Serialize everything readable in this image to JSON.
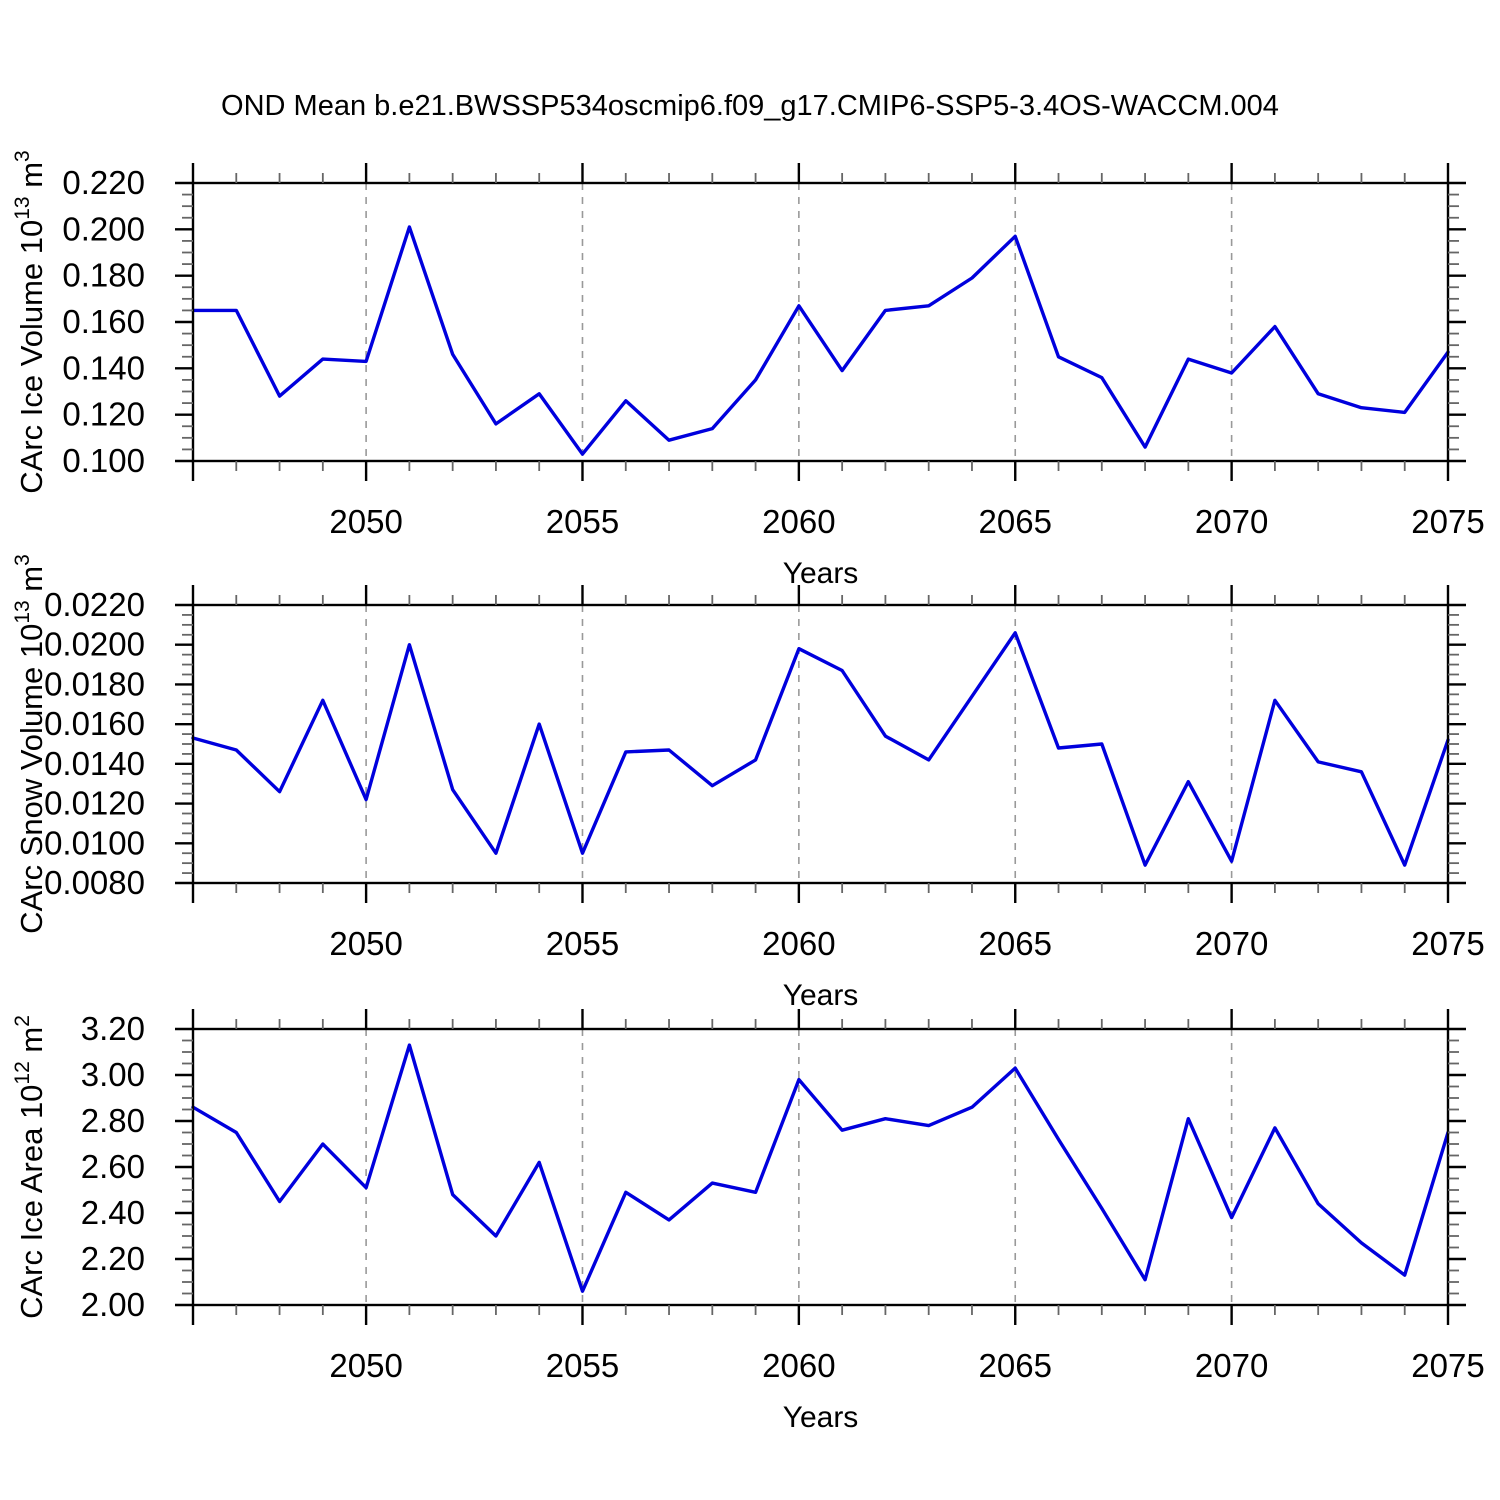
{
  "title": "OND Mean b.e21.BWSSP534oscmip6.f09_g17.CMIP6-SSP5-3.4OS-WACCM.004",
  "colors": {
    "line": "#0000dd",
    "axis": "#000000",
    "minor_tick": "#666666",
    "grid": "#999999",
    "text": "#000000",
    "background": "#ffffff"
  },
  "chart_data": [
    {
      "type": "line",
      "name": "carc-ice-volume",
      "ylabel_parts": [
        {
          "t": "CArc Ice Volume 10",
          "sup": false
        },
        {
          "t": "13",
          "sup": true
        },
        {
          "t": " m",
          "sup": false
        },
        {
          "t": "3",
          "sup": true
        }
      ],
      "xlabel": "Years",
      "x": [
        2046,
        2047,
        2048,
        2049,
        2050,
        2051,
        2052,
        2053,
        2054,
        2055,
        2056,
        2057,
        2058,
        2059,
        2060,
        2061,
        2062,
        2063,
        2064,
        2065,
        2066,
        2067,
        2068,
        2069,
        2070,
        2071,
        2072,
        2073,
        2074,
        2075
      ],
      "values": [
        0.165,
        0.165,
        0.128,
        0.144,
        0.143,
        0.201,
        0.146,
        0.116,
        0.129,
        0.103,
        0.126,
        0.109,
        0.114,
        0.135,
        0.167,
        0.139,
        0.165,
        0.167,
        0.179,
        0.197,
        0.145,
        0.136,
        0.106,
        0.144,
        0.138,
        0.158,
        0.129,
        0.123,
        0.121,
        0.147
      ],
      "ylim": [
        0.1,
        0.22
      ],
      "ytick_step": 0.02,
      "ytick_minor": 0.005,
      "ytick_decimals": 3,
      "xlim": [
        2046,
        2075
      ],
      "xticks": [
        2050,
        2055,
        2060,
        2065,
        2070,
        2075
      ],
      "xtick_minor_step": 1,
      "grid_years": [
        2050,
        2055,
        2060,
        2065,
        2070
      ],
      "grid_on": true,
      "legend": "none"
    },
    {
      "type": "line",
      "name": "carc-snow-volume",
      "ylabel_parts": [
        {
          "t": "CArc Snow Volume 10",
          "sup": false
        },
        {
          "t": "13",
          "sup": true
        },
        {
          "t": " m",
          "sup": false
        },
        {
          "t": "3",
          "sup": true
        }
      ],
      "xlabel": "Years",
      "x": [
        2046,
        2047,
        2048,
        2049,
        2050,
        2051,
        2052,
        2053,
        2054,
        2055,
        2056,
        2057,
        2058,
        2059,
        2060,
        2061,
        2062,
        2063,
        2064,
        2065,
        2066,
        2067,
        2068,
        2069,
        2070,
        2071,
        2072,
        2073,
        2074,
        2075
      ],
      "values": [
        0.0153,
        0.0147,
        0.0126,
        0.0172,
        0.0122,
        0.02,
        0.0127,
        0.0095,
        0.016,
        0.0095,
        0.0146,
        0.0147,
        0.0129,
        0.0142,
        0.0198,
        0.0187,
        0.0154,
        0.0142,
        0.0174,
        0.0206,
        0.0148,
        0.015,
        0.0089,
        0.0131,
        0.0091,
        0.0172,
        0.0141,
        0.0136,
        0.0089,
        0.0152
      ],
      "ylim": [
        0.008,
        0.022
      ],
      "ytick_step": 0.002,
      "ytick_minor": 0.0005,
      "ytick_decimals": 4,
      "xlim": [
        2046,
        2075
      ],
      "xticks": [
        2050,
        2055,
        2060,
        2065,
        2070,
        2075
      ],
      "xtick_minor_step": 1,
      "grid_years": [
        2050,
        2055,
        2060,
        2065,
        2070
      ],
      "grid_on": true,
      "legend": "none"
    },
    {
      "type": "line",
      "name": "carc-ice-area",
      "ylabel_parts": [
        {
          "t": "CArc Ice Area 10",
          "sup": false
        },
        {
          "t": "12",
          "sup": true
        },
        {
          "t": " m",
          "sup": false
        },
        {
          "t": "2",
          "sup": true
        }
      ],
      "xlabel": "Years",
      "x": [
        2046,
        2047,
        2048,
        2049,
        2050,
        2051,
        2052,
        2053,
        2054,
        2055,
        2056,
        2057,
        2058,
        2059,
        2060,
        2061,
        2062,
        2063,
        2064,
        2065,
        2066,
        2067,
        2068,
        2069,
        2070,
        2071,
        2072,
        2073,
        2074,
        2075
      ],
      "values": [
        2.86,
        2.75,
        2.45,
        2.7,
        2.51,
        3.13,
        2.48,
        2.3,
        2.62,
        2.06,
        2.49,
        2.37,
        2.53,
        2.49,
        2.98,
        2.76,
        2.81,
        2.78,
        2.86,
        3.03,
        2.72,
        2.42,
        2.11,
        2.81,
        2.38,
        2.77,
        2.44,
        2.27,
        2.13,
        2.75
      ],
      "ylim": [
        2.0,
        3.2
      ],
      "ytick_step": 0.2,
      "ytick_minor": 0.05,
      "ytick_decimals": 2,
      "xlim": [
        2046,
        2075
      ],
      "xticks": [
        2050,
        2055,
        2060,
        2065,
        2070,
        2075
      ],
      "xtick_minor_step": 1,
      "grid_years": [
        2050,
        2055,
        2060,
        2065,
        2070
      ],
      "grid_on": true,
      "legend": "none"
    }
  ]
}
